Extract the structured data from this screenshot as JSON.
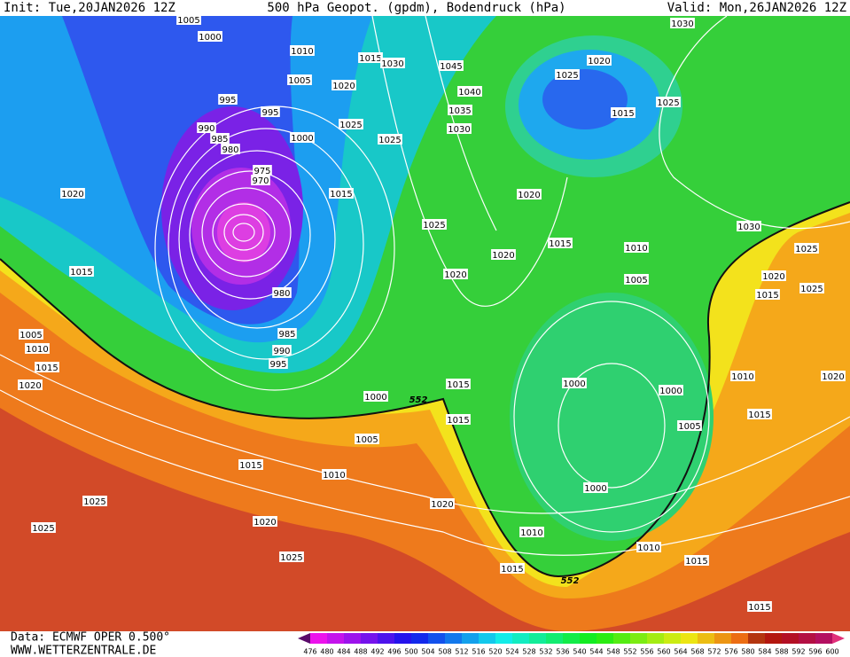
{
  "header": {
    "init": "Init: Tue,20JAN2026 12Z",
    "title": "500 hPa Geopot. (gpdm), Bodendruck (hPa)",
    "valid": "Valid: Mon,26JAN2026 12Z"
  },
  "isobar_labels": [
    1005,
    1000,
    1010,
    1015,
    1030,
    1045,
    1020,
    1025,
    1030,
    1005,
    1020,
    1040,
    995,
    995,
    1035,
    1015,
    1025,
    990,
    1025,
    1030,
    985,
    1000,
    1025,
    980,
    975,
    970,
    1020,
    1015,
    1020,
    1025,
    1030,
    1015,
    1010,
    1025,
    1020,
    1015,
    1020,
    1005,
    1020,
    1025,
    980,
    1015,
    1005,
    985,
    1010,
    990,
    995,
    1015,
    1020,
    1010,
    1020,
    1000,
    1000,
    1015,
    1000,
    1015,
    1015,
    1005,
    1005,
    1015,
    1010,
    1000,
    1025,
    1020,
    1025,
    1020,
    1010,
    1010,
    1025,
    1015,
    1015,
    1015
  ],
  "contour_labels_552": [
    552,
    552
  ],
  "colorbar": [
    476,
    480,
    484,
    488,
    492,
    496,
    500,
    504,
    508,
    512,
    516,
    520,
    524,
    528,
    532,
    536,
    540,
    544,
    548,
    552,
    556,
    560,
    564,
    568,
    572,
    576,
    580,
    584,
    588,
    592,
    596,
    600
  ],
  "footer": {
    "data": "Data: ECMWF OPER 0.500°",
    "url": "WWW.WETTERZENTRALE.DE"
  }
}
